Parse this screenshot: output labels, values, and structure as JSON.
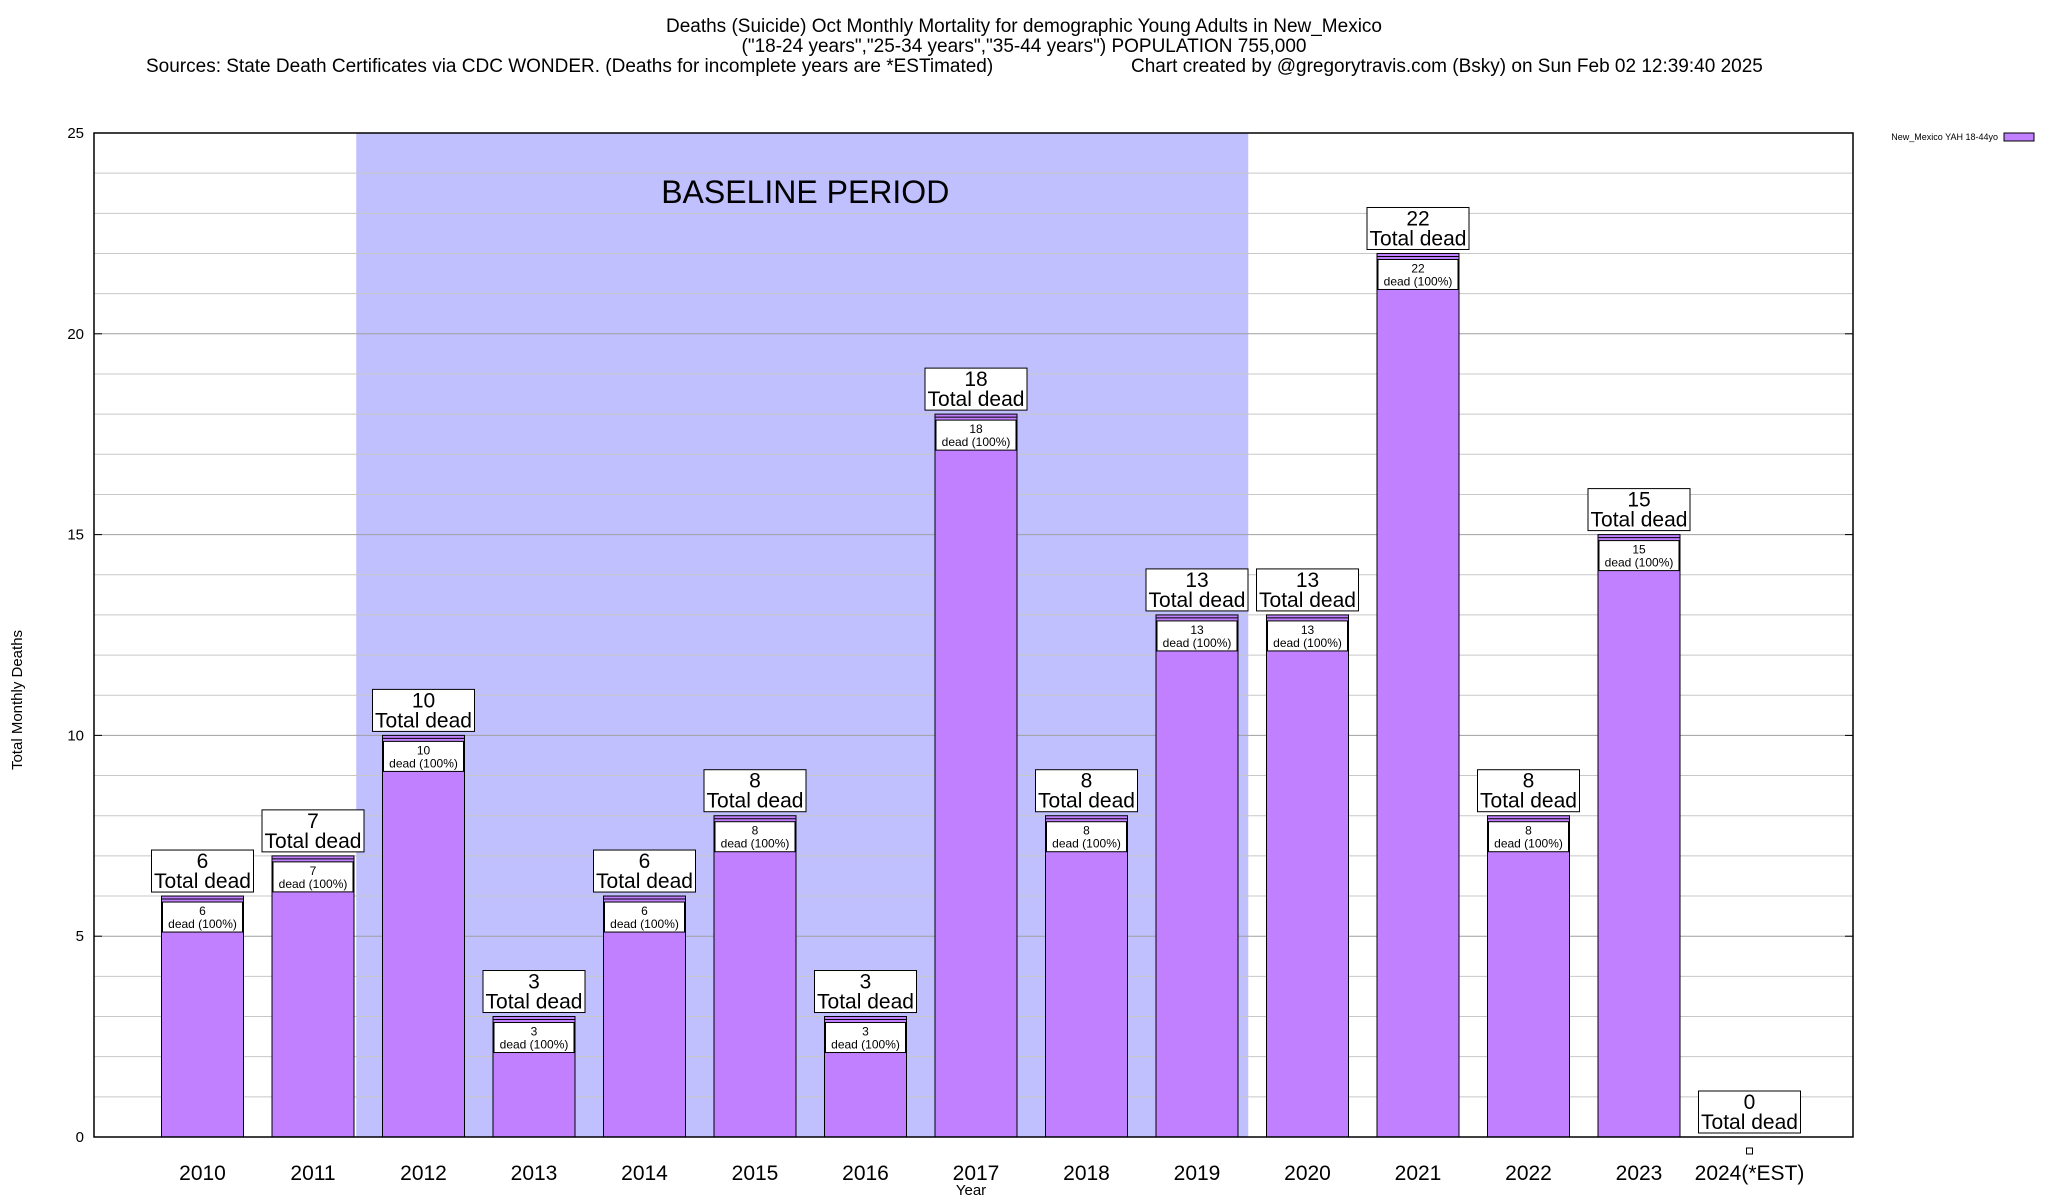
{
  "chart_data": {
    "type": "bar",
    "title_lines": [
      "Deaths (Suicide) Oct Monthly Mortality for demographic Young Adults in New_Mexico",
      "(\"18-24 years\",\"25-34 years\",\"35-44 years\") POPULATION 755,000",
      "Sources: State Death Certificates via CDC WONDER. (Deaths for incomplete years are *ESTimated)",
      "Chart created by @gregorytravis.com (Bsky) on Sun Feb 02 12:39:40 2025"
    ],
    "xlabel": "Year",
    "ylabel": "Total Monthly Deaths",
    "ylim": [
      0,
      25
    ],
    "yticks": [
      0,
      5,
      10,
      15,
      20,
      25
    ],
    "categories": [
      "2010",
      "2011",
      "2012",
      "2013",
      "2014",
      "2015",
      "2016",
      "2017",
      "2018",
      "2019",
      "2020",
      "2021",
      "2022",
      "2023",
      "2024(*EST)"
    ],
    "series": [
      {
        "name": "New_Mexico YAH 18-44yo",
        "values": [
          6,
          7,
          10,
          3,
          6,
          8,
          3,
          18,
          8,
          13,
          13,
          22,
          8,
          15,
          0
        ]
      }
    ],
    "total_caption": "Total dead",
    "segment_caption": "dead (100%)",
    "baseline": {
      "label": "BASELINE PERIOD",
      "from": "2012",
      "to": "2019"
    },
    "colors": {
      "bar": "#c080ff",
      "baseline": "#c0c0ff",
      "grid": "#c8c8c8",
      "axis": "#000000"
    }
  }
}
